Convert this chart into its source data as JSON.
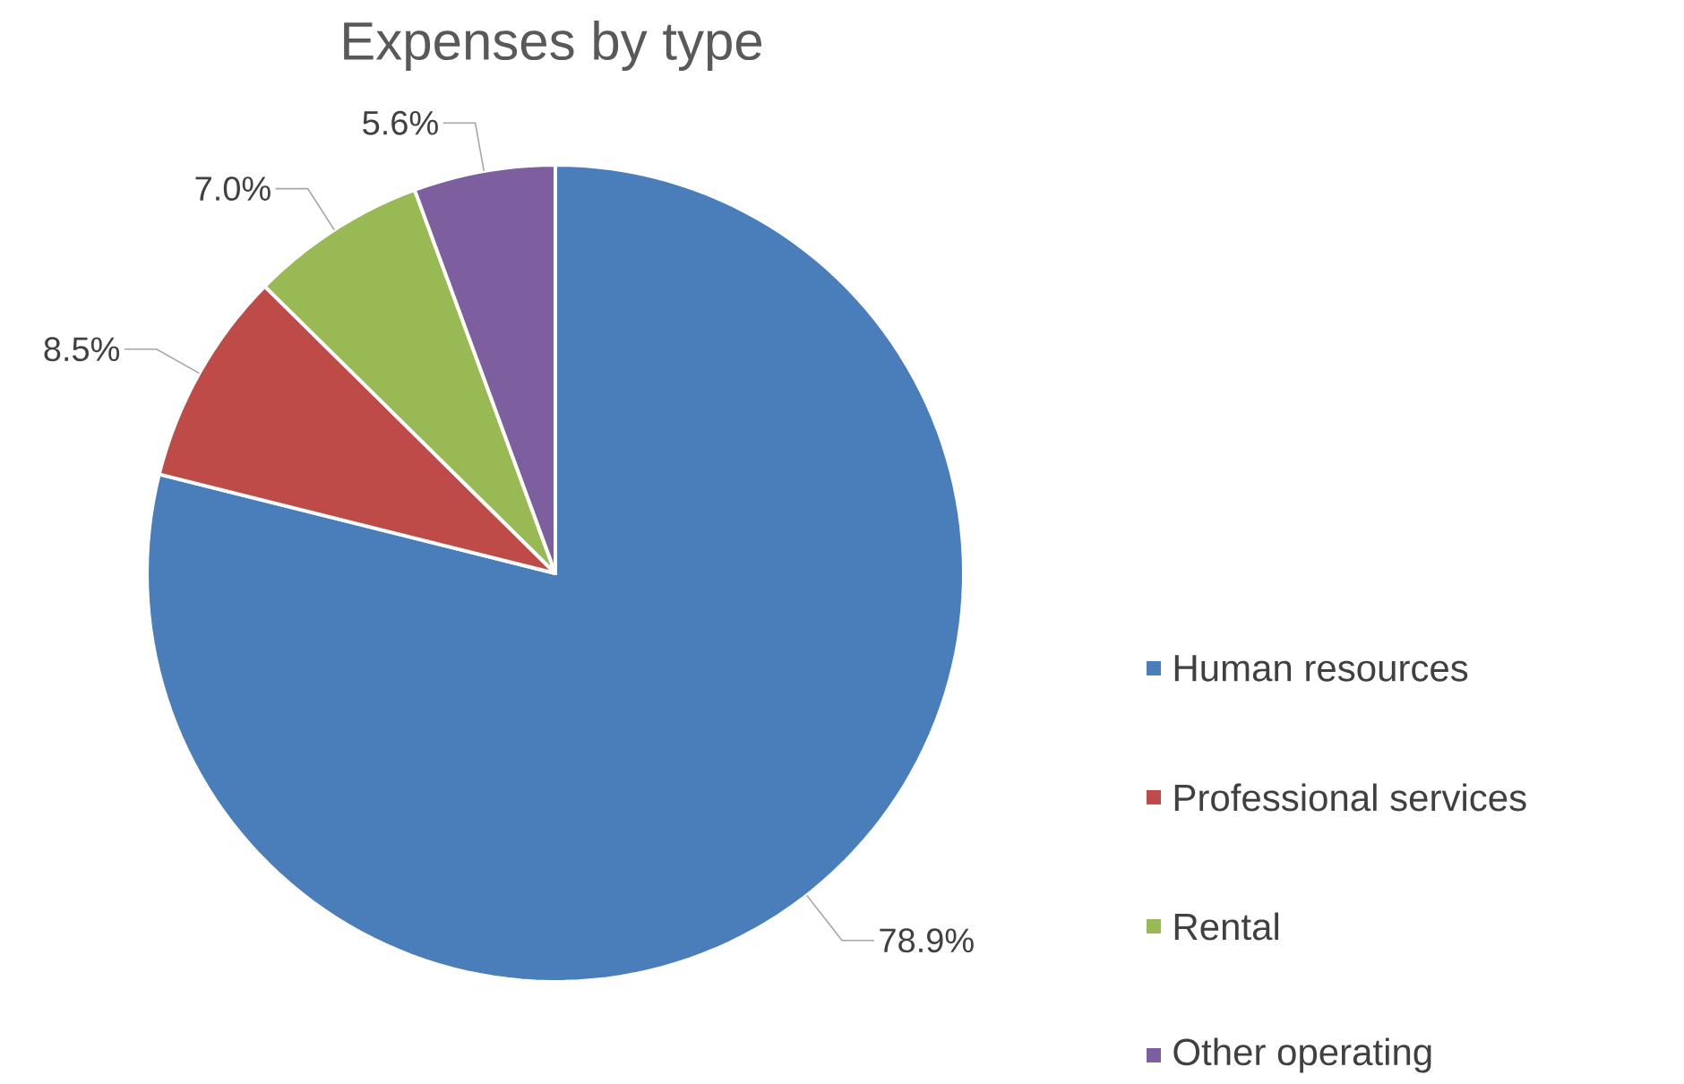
{
  "chart_data": {
    "type": "pie",
    "title": "Expenses by type",
    "categories": [
      "Human resources",
      "Professional services",
      "Rental",
      "Other operating"
    ],
    "values": [
      78.9,
      8.5,
      7.0,
      5.6
    ],
    "value_labels": [
      "78.9%",
      "8.5%",
      "7.0%",
      "5.6%"
    ],
    "colors": [
      "#4a7ebb",
      "#be4b48",
      "#98b954",
      "#7d5fa0"
    ],
    "legend": "right"
  }
}
